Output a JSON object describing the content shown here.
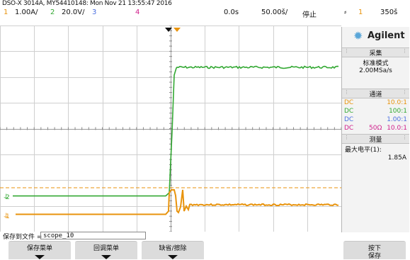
{
  "header": {
    "model_info": "DSO-X 3014A, MY54410148: Mon Nov 21 13:55:47 2016"
  },
  "status": {
    "ch1_num": "1",
    "ch1_scale": "1.00A/",
    "ch2_num": "2",
    "ch2_scale": "20.0V/",
    "ch3_num": "3",
    "ch4_num": "4",
    "time_delay": "0.0s",
    "time_scale": "50.00š/",
    "run_state": "停止",
    "trig_slope": "⸗",
    "trig_src": "1",
    "trig_level": "350š"
  },
  "colors": {
    "ch1": "#e8930c",
    "ch2": "#32a832",
    "ch3": "#4a6fe0",
    "ch4": "#d0208c",
    "grid": "#cfcfcf",
    "trigger_marker": "#e8930c"
  },
  "panel": {
    "brand_icon": "agilent-spark-icon",
    "brand": "Agilent",
    "acq_title": "采集",
    "acq_mode": "标准模式",
    "acq_rate": "2.00MSa/s",
    "chan_title": "通道",
    "chan1_coupling": "DC",
    "chan1_probe": "10.0:1",
    "chan2_coupling": "DC",
    "chan2_probe": "100:1",
    "chan3_coupling": "DC",
    "chan3_probe": "1.00:1",
    "chan4_coupling": "DC",
    "chan4_imp": "50Ω",
    "chan4_probe": "10.0:1",
    "meas_title": "测量",
    "meas_label": "最大电平(1):",
    "meas_value": "1.85A"
  },
  "footer": {
    "save_label": "保存到文件 =",
    "filename": "scope_10",
    "key1": "保存菜单",
    "key2": "回调菜单",
    "key3": "缺省/擦除",
    "key4_line1": "按下",
    "key4_line2": "保存"
  },
  "markers": {
    "ch2_marker": "2",
    "ch1_marker": "1",
    "ch1_ground": "⏚"
  }
}
